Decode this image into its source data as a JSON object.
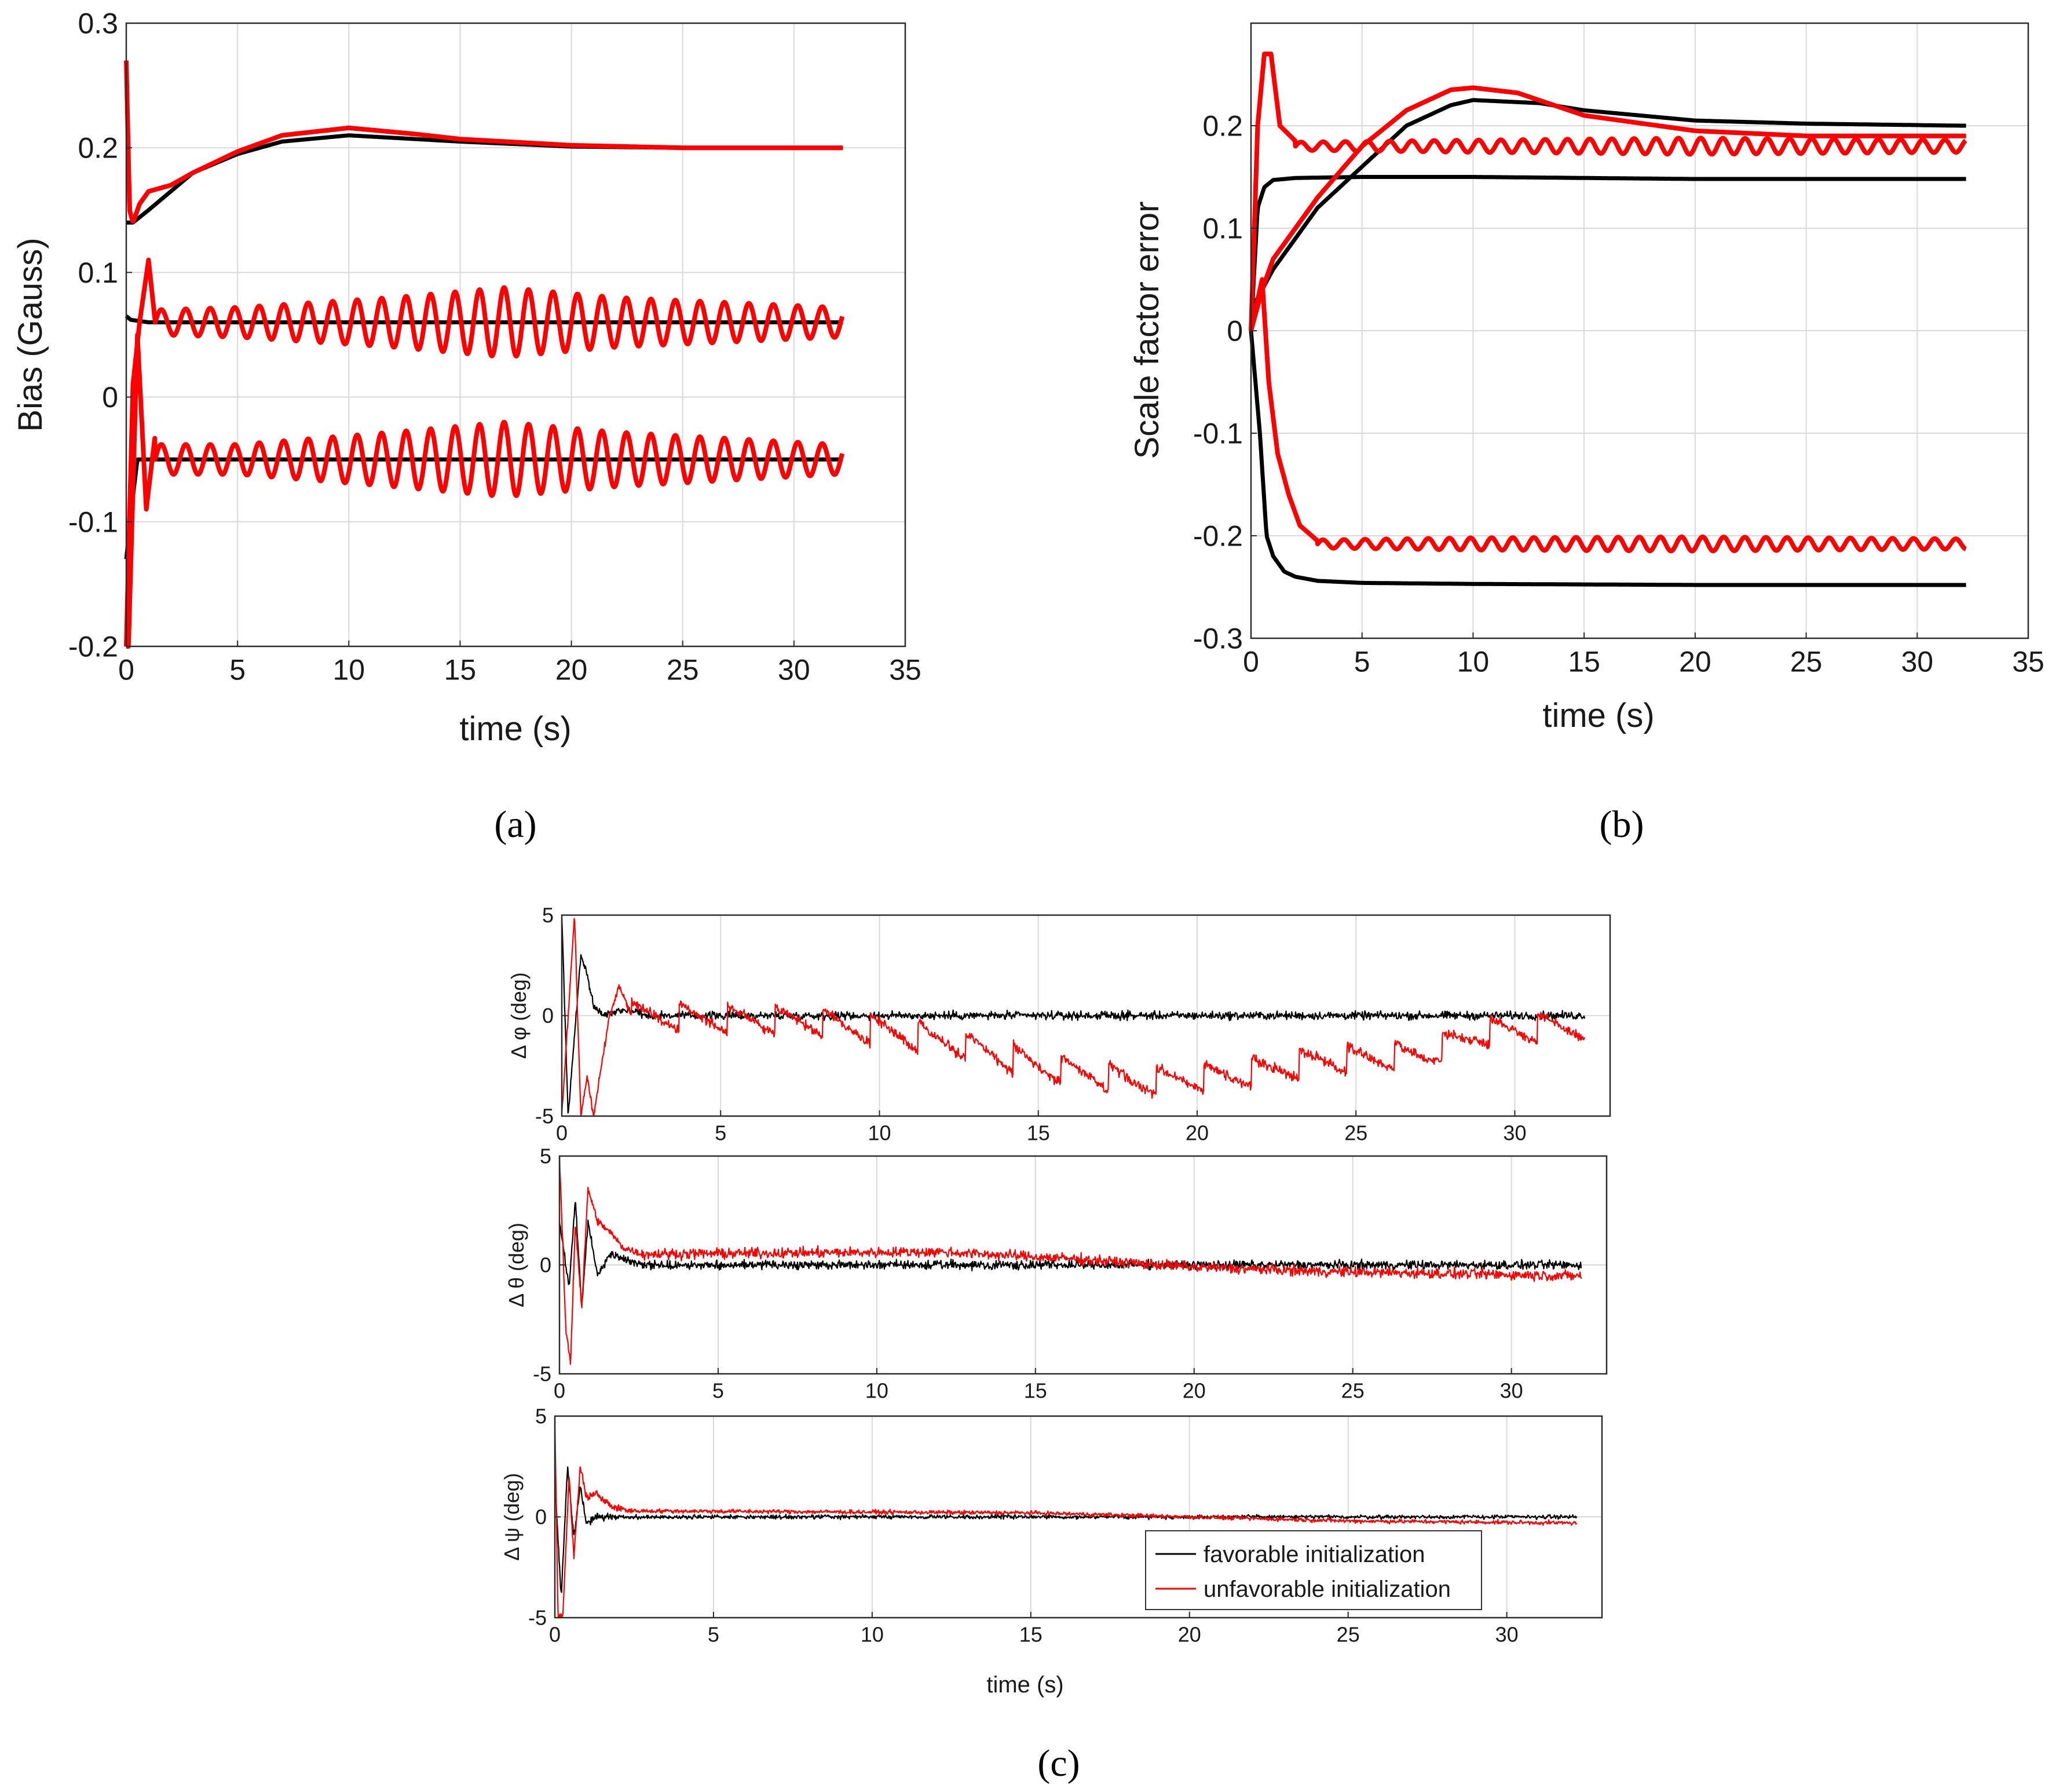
{
  "figure": {
    "panel_labels": [
      "(a)",
      "(b)",
      "(c)"
    ]
  },
  "colors": {
    "favorable": "#000000",
    "unfavorable": "#ff0000"
  },
  "chart_data": [
    {
      "id": "a",
      "type": "line",
      "xlabel": "time (s)",
      "ylabel": "Bias (Gauss)",
      "xlim": [
        0,
        35
      ],
      "ylim": [
        -0.2,
        0.3
      ],
      "xticks": [
        0,
        5,
        10,
        15,
        20,
        25,
        30,
        35
      ],
      "xtick_labels": [
        "0",
        "5",
        "10",
        "15",
        "20",
        "25",
        "30",
        "35"
      ],
      "yticks": [
        -0.2,
        -0.1,
        0,
        0.1,
        0.2,
        0.3
      ],
      "ytick_labels": [
        "-0.2",
        "-0.1",
        "0",
        "0.1",
        "0.2",
        "0.3"
      ],
      "grid": true,
      "series": [
        {
          "name": "favorable initialization",
          "color": "black",
          "x": [
            0,
            0.3,
            1,
            2,
            3,
            5,
            7,
            10,
            13,
            15,
            20,
            25,
            32
          ],
          "y": [
            0.14,
            0.14,
            0.15,
            0.165,
            0.18,
            0.195,
            0.205,
            0.21,
            0.207,
            0.205,
            0.201,
            0.2,
            0.2
          ]
        },
        {
          "name": "favorable initialization",
          "color": "black",
          "x": [
            0,
            0.2,
            1,
            5,
            10,
            20,
            32
          ],
          "y": [
            0.065,
            0.062,
            0.06,
            0.06,
            0.06,
            0.06,
            0.06
          ]
        },
        {
          "name": "favorable initialization",
          "color": "black",
          "x": [
            0,
            0.3,
            0.5,
            1,
            5,
            10,
            20,
            32
          ],
          "y": [
            -0.13,
            -0.08,
            -0.05,
            -0.05,
            -0.05,
            -0.05,
            -0.05,
            -0.05
          ]
        },
        {
          "name": "unfavorable initialization",
          "color": "red",
          "x": [
            0,
            0.15,
            0.3,
            0.6,
            1,
            2,
            3,
            5,
            7,
            10,
            13,
            15,
            20,
            25,
            32
          ],
          "y": [
            0.27,
            0.15,
            0.14,
            0.155,
            0.165,
            0.17,
            0.18,
            0.197,
            0.21,
            0.216,
            0.211,
            0.207,
            0.202,
            0.2,
            0.2
          ]
        },
        {
          "name": "unfavorable initialization",
          "color": "red",
          "base": 0.06,
          "osc_period": 1.1,
          "amp_profile": {
            "t": [
              1.2,
              5,
              12,
              17,
              22,
              32
            ],
            "a": [
              0.01,
              0.012,
              0.02,
              0.028,
              0.02,
              0.012
            ]
          },
          "transient": {
            "x": [
              0,
              0.3,
              0.6,
              1.0,
              1.3
            ],
            "y": [
              -0.2,
              0.01,
              0.06,
              0.11,
              0.06
            ]
          }
        },
        {
          "name": "unfavorable initialization",
          "color": "red",
          "base": -0.05,
          "osc_period": 1.1,
          "amp_profile": {
            "t": [
              1.5,
              5,
              12,
              17,
              22,
              32
            ],
            "a": [
              0.012,
              0.012,
              0.022,
              0.03,
              0.022,
              0.012
            ]
          },
          "transient": {
            "x": [
              0,
              0.1,
              0.5,
              0.9,
              1.3
            ],
            "y": [
              -0.2,
              -0.2,
              0.05,
              -0.09,
              -0.03
            ]
          }
        }
      ]
    },
    {
      "id": "b",
      "type": "line",
      "xlabel": "time (s)",
      "ylabel": "Scale factor error",
      "xlim": [
        0,
        35
      ],
      "ylim": [
        -0.3,
        0.3
      ],
      "xticks": [
        0,
        5,
        10,
        15,
        20,
        25,
        30,
        35
      ],
      "xtick_labels": [
        "0",
        "5",
        "10",
        "15",
        "20",
        "25",
        "30",
        "35"
      ],
      "yticks": [
        -0.3,
        -0.2,
        -0.1,
        0,
        0.1,
        0.2
      ],
      "ytick_labels": [
        "-0.3",
        "-0.2",
        "-0.1",
        "0",
        "0.1",
        "0.2"
      ],
      "grid": true,
      "series": [
        {
          "name": "favorable initialization",
          "color": "black",
          "x": [
            0,
            0.5,
            1,
            2,
            3,
            5,
            7,
            9,
            10,
            13,
            15,
            20,
            25,
            32
          ],
          "y": [
            0.02,
            0.04,
            0.06,
            0.09,
            0.12,
            0.16,
            0.2,
            0.22,
            0.225,
            0.222,
            0.215,
            0.205,
            0.202,
            0.2
          ]
        },
        {
          "name": "favorable initialization",
          "color": "black",
          "x": [
            0,
            0.3,
            0.6,
            1,
            2,
            5,
            10,
            20,
            32
          ],
          "y": [
            0,
            0.12,
            0.14,
            0.147,
            0.149,
            0.15,
            0.15,
            0.148,
            0.148
          ]
        },
        {
          "name": "favorable initialization",
          "color": "black",
          "x": [
            0,
            0.4,
            0.7,
            1,
            1.5,
            2,
            3,
            5,
            10,
            20,
            32
          ],
          "y": [
            0,
            -0.1,
            -0.2,
            -0.22,
            -0.235,
            -0.24,
            -0.244,
            -0.246,
            -0.247,
            -0.248,
            -0.248
          ]
        },
        {
          "name": "unfavorable initialization",
          "color": "red",
          "x": [
            0,
            0.5,
            1,
            2,
            3,
            5,
            7,
            9,
            10,
            12,
            15,
            20,
            25,
            32
          ],
          "y": [
            0,
            0.04,
            0.07,
            0.1,
            0.13,
            0.18,
            0.215,
            0.235,
            0.237,
            0.232,
            0.21,
            0.195,
            0.19,
            0.19
          ]
        },
        {
          "name": "unfavorable initialization",
          "color": "red",
          "base": 0.18,
          "osc_period": 1.0,
          "amp_profile": {
            "t": [
              2,
              10,
              20,
              32
            ],
            "a": [
              0.004,
              0.006,
              0.008,
              0.006
            ]
          },
          "transient": {
            "x": [
              0,
              0.3,
              0.6,
              0.9,
              1.3,
              2
            ],
            "y": [
              0,
              0.2,
              0.27,
              0.27,
              0.2,
              0.185
            ]
          }
        },
        {
          "name": "unfavorable initialization",
          "color": "red",
          "base": -0.208,
          "osc_period": 0.95,
          "amp_profile": {
            "t": [
              3,
              10,
              20,
              32
            ],
            "a": [
              0.004,
              0.006,
              0.007,
              0.005
            ]
          },
          "transient": {
            "x": [
              0,
              0.5,
              0.8,
              1.2,
              1.7,
              2.2,
              3.0
            ],
            "y": [
              0,
              0.05,
              -0.05,
              -0.12,
              -0.16,
              -0.19,
              -0.205
            ]
          }
        }
      ]
    },
    {
      "id": "c",
      "type": "line",
      "xlabel": "time (s)",
      "xlim": [
        0,
        33
      ],
      "subplots": [
        {
          "ylabel": "Δ φ (deg)",
          "ylim": [
            -5,
            5
          ],
          "yticks": [
            -5,
            0,
            5
          ],
          "ytick_labels": [
            "-5",
            "0",
            "5"
          ],
          "xticks": [
            0,
            5,
            10,
            15,
            20,
            25,
            30
          ],
          "xtick_labels": [
            "0",
            "5",
            "10",
            "15",
            "20",
            "25",
            "30"
          ],
          "series": [
            {
              "name": "favorable initialization",
              "color": "black",
              "transient": {
                "x": [
                  0,
                  0.2,
                  0.4,
                  0.6,
                  0.8,
                  1.0,
                  1.3,
                  1.8,
                  2.5
                ],
                "y": [
                  5,
                  -5,
                  -1,
                  3,
                  2,
                  0.5,
                  0,
                  0.3,
                  0.2
                ]
              },
              "noise": 0.3
            },
            {
              "name": "unfavorable initialization",
              "color": "red",
              "transient": {
                "x": [
                  0,
                  0.4,
                  0.6,
                  0.8,
                  1.0,
                  1.2,
                  1.5,
                  1.8,
                  2.2
                ],
                "y": [
                  -5,
                  5,
                  -5,
                  -3,
                  -5,
                  -3,
                  0,
                  1.5,
                  0
                ]
              },
              "drift": {
                "t": [
                  2,
                  8,
                  12,
                  15,
                  18,
                  21,
                  24,
                  27,
                  29,
                  32
                ],
                "v": [
                  0,
                  -0.3,
                  -1.2,
                  -2.5,
                  -3.3,
                  -3.0,
                  -2.2,
                  -2.0,
                  -0.8,
                  -0.5
                ]
              },
              "saw_period": 1.5,
              "saw_amp": 0.7,
              "noise": 0.35
            }
          ]
        },
        {
          "ylabel": "Δ θ (deg)",
          "ylim": [
            -5,
            5
          ],
          "yticks": [
            -5,
            0,
            5
          ],
          "ytick_labels": [
            "-5",
            "0",
            "5"
          ],
          "xticks": [
            0,
            5,
            10,
            15,
            20,
            25,
            30
          ],
          "xtick_labels": [
            "0",
            "5",
            "10",
            "15",
            "20",
            "25",
            "30"
          ],
          "series": [
            {
              "name": "favorable initialization",
              "color": "black",
              "transient": {
                "x": [
                  0,
                  0.3,
                  0.5,
                  0.7,
                  0.9,
                  1.2,
                  1.6,
                  2.5
                ],
                "y": [
                  2,
                  -1,
                  3,
                  -2,
                  2,
                  -0.5,
                  0.5,
                  0
                ]
              },
              "drift": {
                "t": [
                  2.5,
                  10,
                  15,
                  20,
                  32
                ],
                "v": [
                  0,
                  0,
                  0,
                  0,
                  0
                ]
              },
              "noise": 0.3
            },
            {
              "name": "unfavorable initialization",
              "color": "red",
              "transient": {
                "x": [
                  0,
                  0.2,
                  0.35,
                  0.5,
                  0.7,
                  0.9,
                  1.2,
                  1.6,
                  2.0,
                  2.6
                ],
                "y": [
                  5,
                  -3,
                  -4.5,
                  2,
                  -2,
                  3.5,
                  2,
                  1.5,
                  0.8,
                  0.5
                ]
              },
              "drift": {
                "t": [
                  2.6,
                  12,
                  16,
                  20,
                  24,
                  32
                ],
                "v": [
                  0.5,
                  0.6,
                  0.3,
                  -0.1,
                  -0.3,
                  -0.5
                ]
              },
              "noise": 0.35
            }
          ]
        },
        {
          "ylabel": "Δ ψ (deg)",
          "ylim": [
            -5,
            5
          ],
          "yticks": [
            -5,
            0,
            5
          ],
          "ytick_labels": [
            "-5",
            "0",
            "5"
          ],
          "xticks": [
            0,
            5,
            10,
            15,
            20,
            25,
            30
          ],
          "xtick_labels": [
            "0",
            "5",
            "10",
            "15",
            "20",
            "25",
            "30"
          ],
          "legend": {
            "location": "bottom-right",
            "entries": [
              "favorable initialization",
              "unfavorable initialization"
            ]
          },
          "series": [
            {
              "name": "favorable initialization",
              "color": "black",
              "transient": {
                "x": [
                  0,
                  0.2,
                  0.4,
                  0.6,
                  0.8,
                  1.0,
                  1.3,
                  2.0
                ],
                "y": [
                  2,
                  -4,
                  2.5,
                  -1,
                  1.5,
                  -0.3,
                  0,
                  0
                ]
              },
              "drift": {
                "t": [
                  2,
                  20,
                  32
                ],
                "v": [
                  0,
                  0,
                  0
                ]
              },
              "noise": 0.15
            },
            {
              "name": "unfavorable initialization",
              "color": "red",
              "transient": {
                "x": [
                  0,
                  0.1,
                  0.25,
                  0.45,
                  0.6,
                  0.8,
                  1.0,
                  1.3,
                  1.8,
                  2.4
                ],
                "y": [
                  5,
                  -5,
                  -5,
                  2,
                  -2,
                  2.5,
                  1,
                  1.2,
                  0.5,
                  0.3
                ]
              },
              "drift": {
                "t": [
                  2.4,
                  15,
                  20,
                  25,
                  32
                ],
                "v": [
                  0.3,
                  0.2,
                  0,
                  -0.2,
                  -0.3
                ]
              },
              "noise": 0.15
            }
          ]
        }
      ]
    }
  ]
}
